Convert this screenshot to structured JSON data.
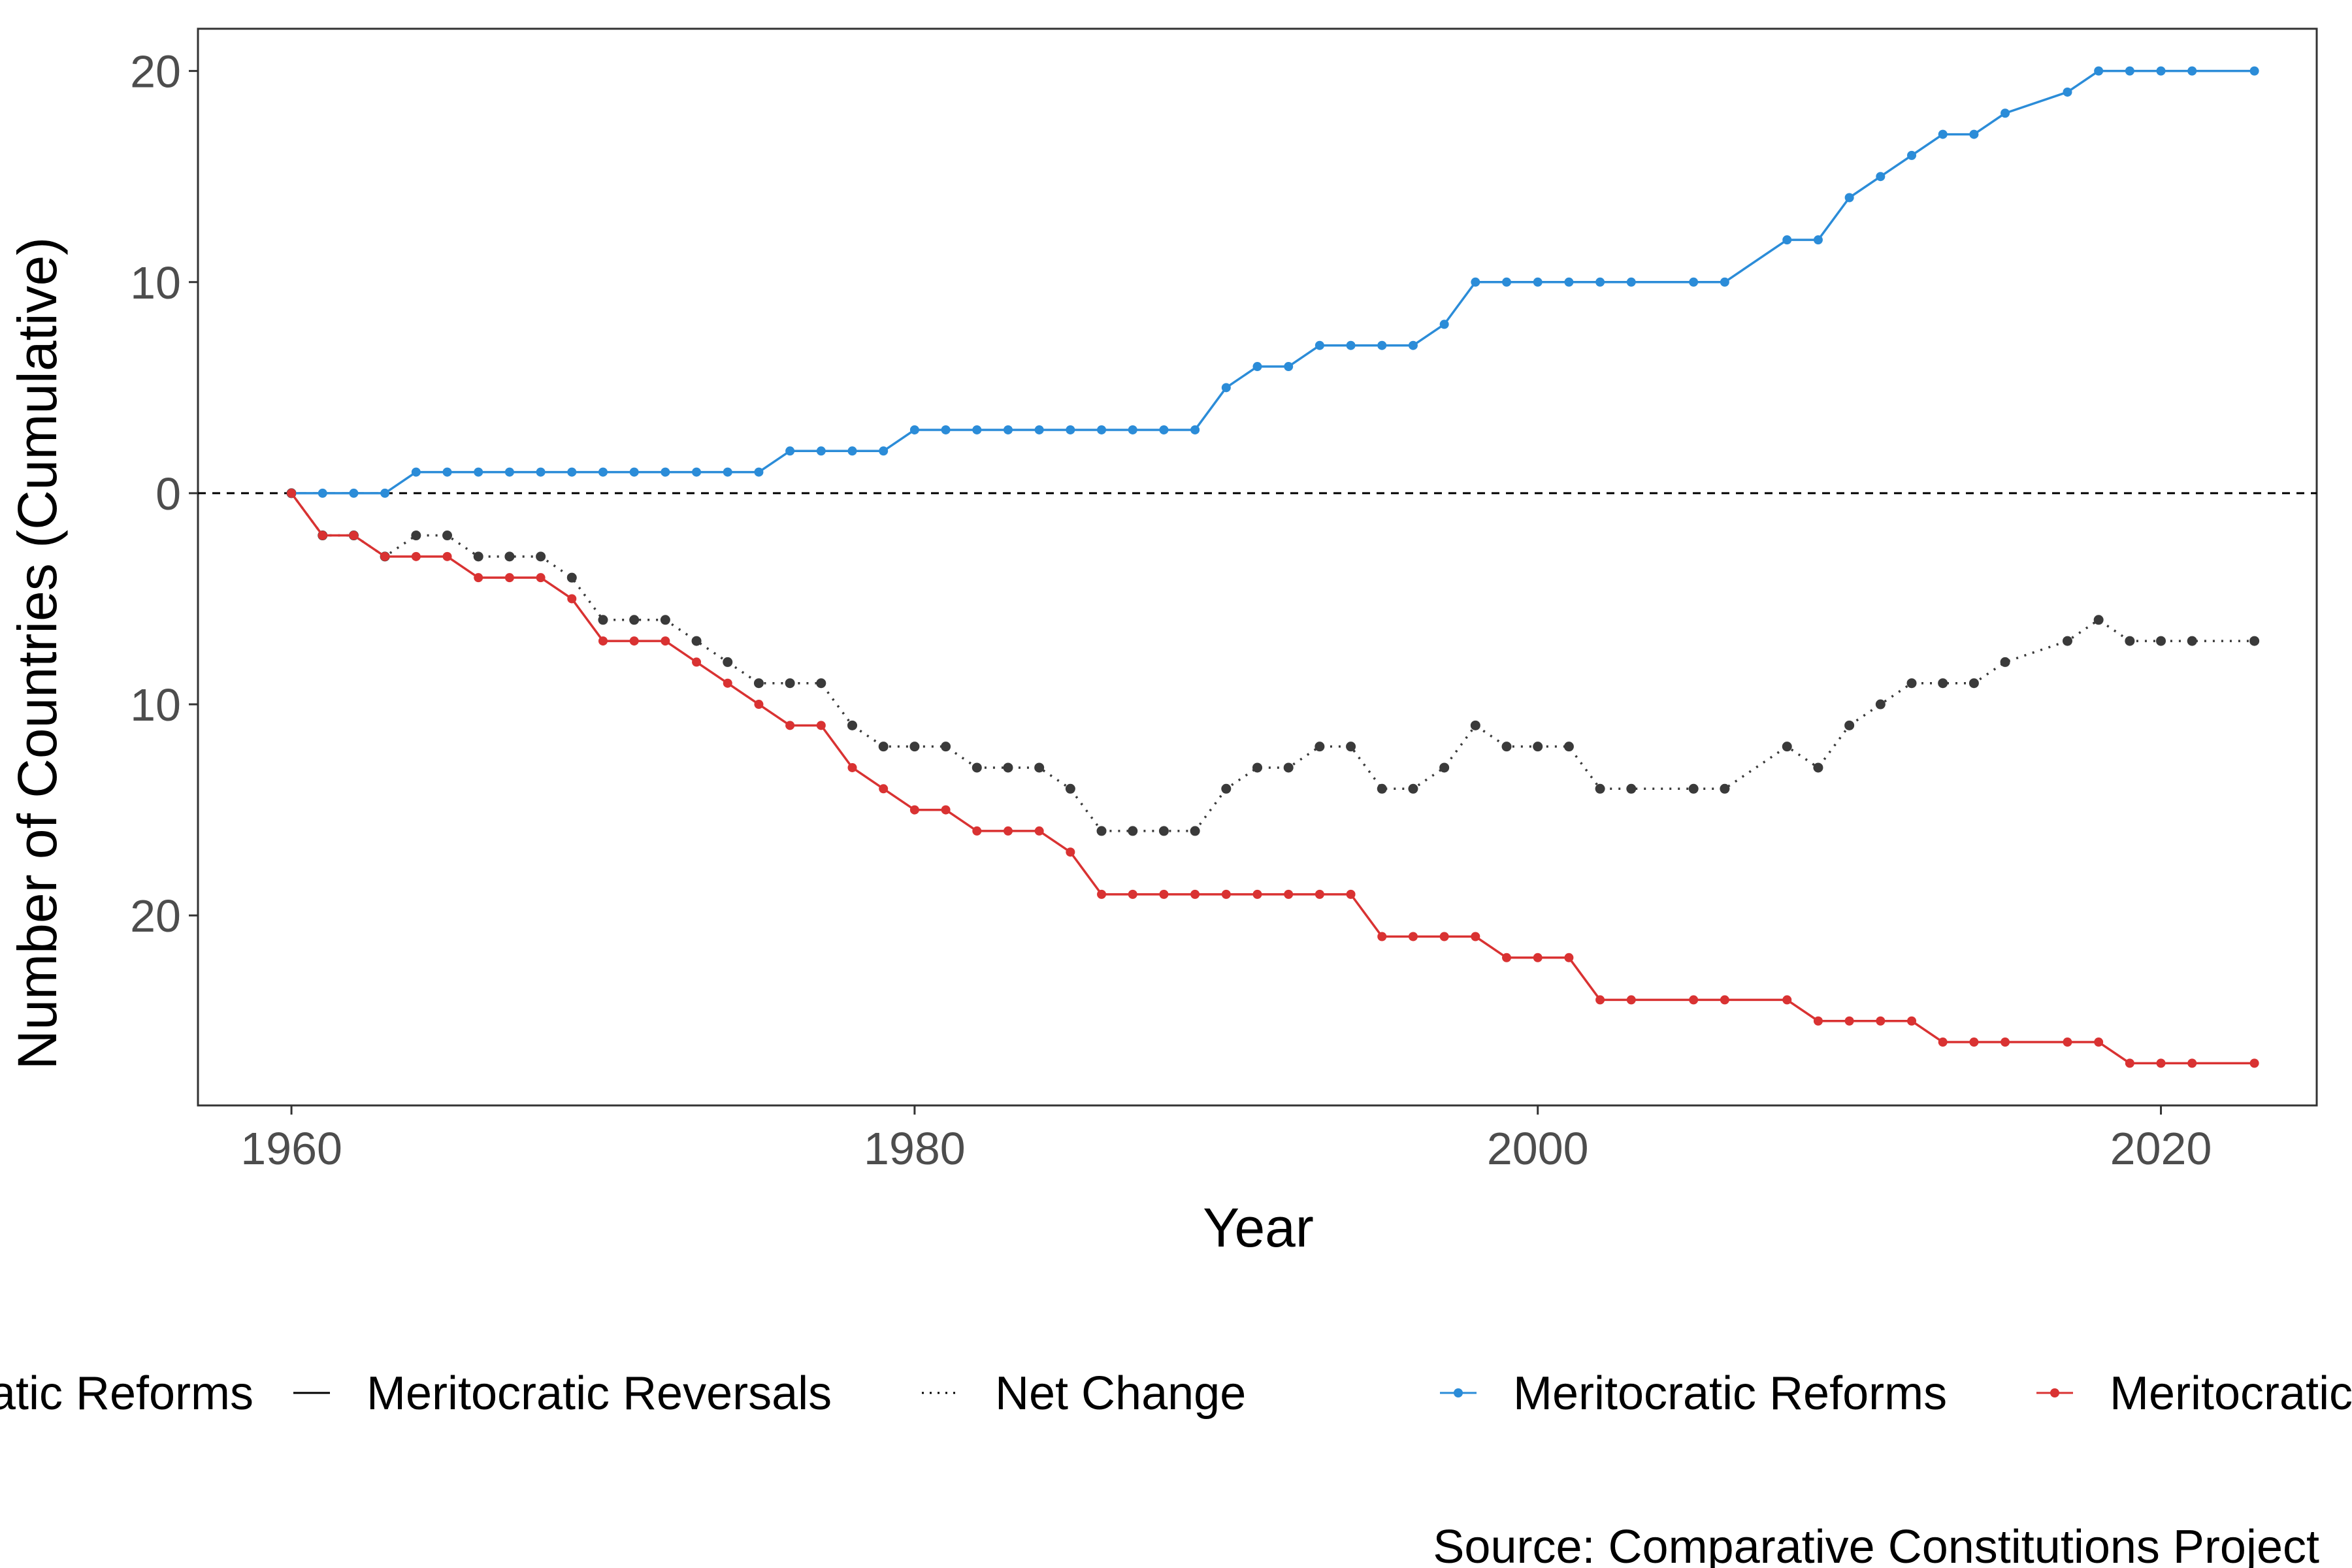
{
  "chart_data": {
    "type": "line",
    "xlabel": "Year",
    "ylabel": "Number of Countries (Cumulative)",
    "caption": "Source: Comparative Constitutions Project",
    "xlim": [
      1957,
      2025
    ],
    "ylim": [
      -29,
      22
    ],
    "x_ticks": [
      1960,
      1980,
      2000,
      2020
    ],
    "y_ticks": [
      {
        "value": 20,
        "label": "20"
      },
      {
        "value": 10,
        "label": "10"
      },
      {
        "value": 0,
        "label": "0"
      },
      {
        "value": -10,
        "label": "10"
      },
      {
        "value": -20,
        "label": "20"
      }
    ],
    "reference_line": {
      "y": 0,
      "style": "dashed"
    },
    "legend": {
      "linetype_entries": [
        {
          "label": "Meritocratic Reforms",
          "style": "solid"
        },
        {
          "label": "Meritocratic Reversals",
          "style": "solid"
        },
        {
          "label": "Net Change",
          "style": "dotted"
        }
      ],
      "color_entries": [
        {
          "label": "Meritocratic Reforms",
          "color": "#2b8cd8"
        },
        {
          "label": "Meritocratic Reversals",
          "color": "#d93232"
        }
      ],
      "placement": "bottom"
    },
    "series": [
      {
        "name": "Meritocratic Reforms",
        "color": "#2b8cd8",
        "dash": "solid",
        "x": [
          1960,
          1961,
          1962,
          1963,
          1964,
          1965,
          1966,
          1967,
          1968,
          1969,
          1970,
          1971,
          1972,
          1973,
          1974,
          1975,
          1976,
          1977,
          1978,
          1979,
          1980,
          1981,
          1982,
          1983,
          1984,
          1985,
          1986,
          1987,
          1988,
          1989,
          1990,
          1991,
          1992,
          1993,
          1994,
          1995,
          1996,
          1997,
          1998,
          1999,
          2000,
          2001,
          2002,
          2003,
          2005,
          2006,
          2008,
          2009,
          2010,
          2011,
          2012,
          2013,
          2014,
          2015,
          2017,
          2018,
          2019,
          2020,
          2021,
          2023
        ],
        "y": [
          0,
          0,
          0,
          0,
          1,
          1,
          1,
          1,
          1,
          1,
          1,
          1,
          1,
          1,
          1,
          1,
          2,
          2,
          2,
          2,
          3,
          3,
          3,
          3,
          3,
          3,
          3,
          3,
          3,
          3,
          5,
          6,
          6,
          7,
          7,
          7,
          7,
          8,
          10,
          10,
          10,
          10,
          10,
          10,
          10,
          10,
          12,
          12,
          14,
          15,
          16,
          17,
          17,
          18,
          19,
          20,
          20,
          20,
          20,
          20
        ]
      },
      {
        "name": "Meritocratic Reversals",
        "color": "#d93232",
        "dash": "solid",
        "x": [
          1960,
          1961,
          1962,
          1963,
          1964,
          1965,
          1966,
          1967,
          1968,
          1969,
          1970,
          1971,
          1972,
          1973,
          1974,
          1975,
          1976,
          1977,
          1978,
          1979,
          1980,
          1981,
          1982,
          1983,
          1984,
          1985,
          1986,
          1987,
          1988,
          1989,
          1990,
          1991,
          1992,
          1993,
          1994,
          1995,
          1996,
          1997,
          1998,
          1999,
          2000,
          2001,
          2002,
          2003,
          2005,
          2006,
          2008,
          2009,
          2010,
          2011,
          2012,
          2013,
          2014,
          2015,
          2017,
          2018,
          2019,
          2020,
          2021,
          2023
        ],
        "y": [
          0,
          -2,
          -2,
          -3,
          -3,
          -3,
          -4,
          -4,
          -4,
          -5,
          -7,
          -7,
          -7,
          -8,
          -9,
          -10,
          -11,
          -11,
          -13,
          -14,
          -15,
          -15,
          -16,
          -16,
          -16,
          -17,
          -19,
          -19,
          -19,
          -19,
          -19,
          -19,
          -19,
          -19,
          -19,
          -21,
          -21,
          -21,
          -21,
          -22,
          -22,
          -22,
          -24,
          -24,
          -24,
          -24,
          -24,
          -25,
          -25,
          -25,
          -25,
          -26,
          -26,
          -26,
          -26,
          -26,
          -27,
          -27,
          -27,
          -27
        ]
      },
      {
        "name": "Net Change",
        "color": "#3a3a3a",
        "dash": "dotted",
        "x": [
          1960,
          1961,
          1962,
          1963,
          1964,
          1965,
          1966,
          1967,
          1968,
          1969,
          1970,
          1971,
          1972,
          1973,
          1974,
          1975,
          1976,
          1977,
          1978,
          1979,
          1980,
          1981,
          1982,
          1983,
          1984,
          1985,
          1986,
          1987,
          1988,
          1989,
          1990,
          1991,
          1992,
          1993,
          1994,
          1995,
          1996,
          1997,
          1998,
          1999,
          2000,
          2001,
          2002,
          2003,
          2005,
          2006,
          2008,
          2009,
          2010,
          2011,
          2012,
          2013,
          2014,
          2015,
          2017,
          2018,
          2019,
          2020,
          2021,
          2023
        ],
        "y": [
          0,
          -2,
          -2,
          -3,
          -2,
          -2,
          -3,
          -3,
          -3,
          -4,
          -6,
          -6,
          -6,
          -7,
          -8,
          -9,
          -9,
          -9,
          -11,
          -12,
          -12,
          -12,
          -13,
          -13,
          -13,
          -14,
          -16,
          -16,
          -16,
          -16,
          -14,
          -13,
          -13,
          -12,
          -12,
          -14,
          -14,
          -13,
          -11,
          -12,
          -12,
          -12,
          -14,
          -14,
          -14,
          -14,
          -12,
          -13,
          -11,
          -10,
          -9,
          -9,
          -9,
          -8,
          -7,
          -6,
          -7,
          -7,
          -7,
          -7
        ]
      }
    ]
  }
}
